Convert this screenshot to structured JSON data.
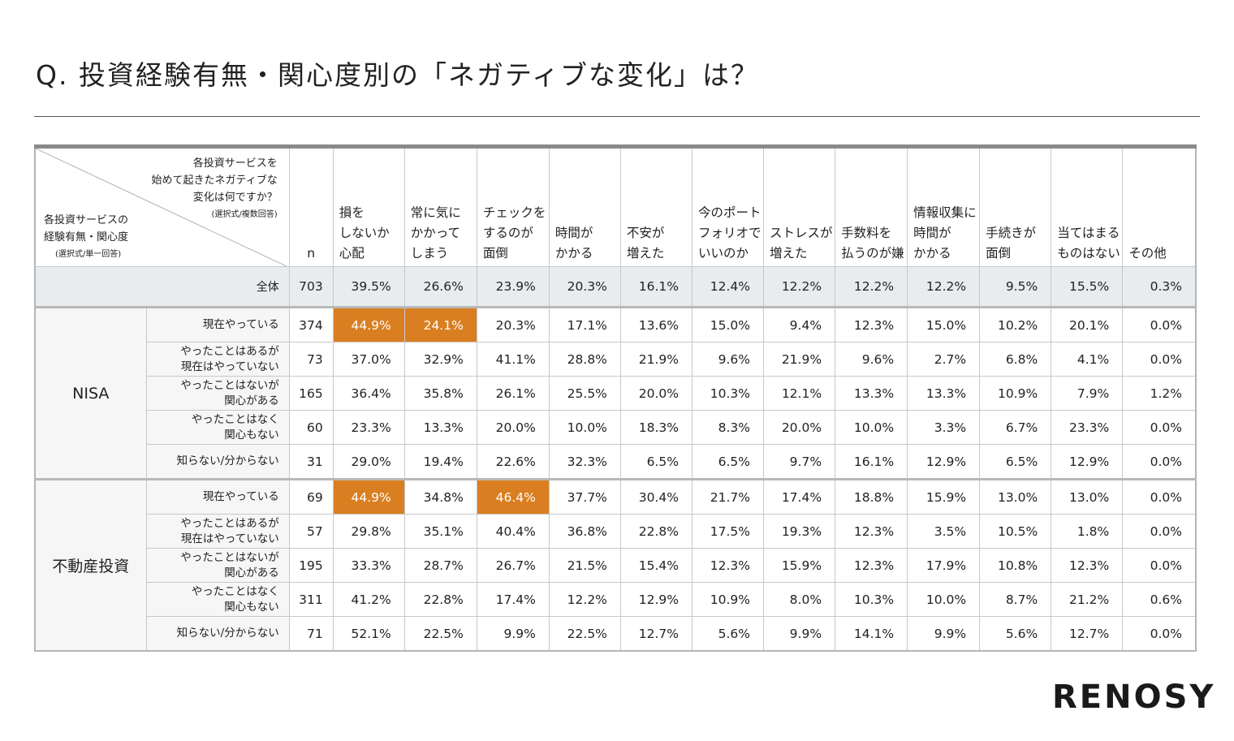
{
  "title": "Q. 投資経験有無・関心度別の「ネガティブな変化」は？",
  "corner": {
    "question_lines": [
      "各投資サービスを",
      "始めて起きたネガティブな",
      "変化は何ですか？"
    ],
    "question_note": "(選択式/複数回答)",
    "segment_lines": [
      "各投資サービスの",
      "経験有無・関心度"
    ],
    "segment_note": "(選択式/単一回答)"
  },
  "n_label": "n",
  "headers": [
    [
      "損を",
      "しないか",
      "心配"
    ],
    [
      "常に気に",
      "かかって",
      "しまう"
    ],
    [
      "チェックを",
      "するのが",
      "面倒"
    ],
    [
      "時間が",
      "かかる"
    ],
    [
      "不安が",
      "増えた"
    ],
    [
      "今のポート",
      "フォリオで",
      "いいのか"
    ],
    [
      "ストレスが",
      "増えた"
    ],
    [
      "手数料を",
      "払うのが嫌"
    ],
    [
      "情報収集に",
      "時間が",
      "かかる"
    ],
    [
      "手続きが",
      "面倒"
    ],
    [
      "当てはまる",
      "ものはない"
    ],
    [
      "その他"
    ]
  ],
  "total": {
    "label": "全体",
    "n": "703",
    "values": [
      "39.5%",
      "26.6%",
      "23.9%",
      "20.3%",
      "16.1%",
      "12.4%",
      "12.2%",
      "12.2%",
      "12.2%",
      "9.5%",
      "15.5%",
      "0.3%"
    ]
  },
  "groups": [
    {
      "name": "NISA",
      "rows": [
        {
          "label": [
            "現在やっている"
          ],
          "n": "374",
          "values": [
            "44.9%",
            "24.1%",
            "20.3%",
            "17.1%",
            "13.6%",
            "15.0%",
            "9.4%",
            "12.3%",
            "15.0%",
            "10.2%",
            "20.1%",
            "0.0%"
          ],
          "highlight": [
            0,
            1
          ]
        },
        {
          "label": [
            "やったことはあるが",
            "現在はやっていない"
          ],
          "n": "73",
          "values": [
            "37.0%",
            "32.9%",
            "41.1%",
            "28.8%",
            "21.9%",
            "9.6%",
            "21.9%",
            "9.6%",
            "2.7%",
            "6.8%",
            "4.1%",
            "0.0%"
          ],
          "highlight": []
        },
        {
          "label": [
            "やったことはないが",
            "関心がある"
          ],
          "n": "165",
          "values": [
            "36.4%",
            "35.8%",
            "26.1%",
            "25.5%",
            "20.0%",
            "10.3%",
            "12.1%",
            "13.3%",
            "13.3%",
            "10.9%",
            "7.9%",
            "1.2%"
          ],
          "highlight": []
        },
        {
          "label": [
            "やったことはなく",
            "関心もない"
          ],
          "n": "60",
          "values": [
            "23.3%",
            "13.3%",
            "20.0%",
            "10.0%",
            "18.3%",
            "8.3%",
            "20.0%",
            "10.0%",
            "3.3%",
            "6.7%",
            "23.3%",
            "0.0%"
          ],
          "highlight": []
        },
        {
          "label": [
            "知らない/分からない"
          ],
          "n": "31",
          "values": [
            "29.0%",
            "19.4%",
            "22.6%",
            "32.3%",
            "6.5%",
            "6.5%",
            "9.7%",
            "16.1%",
            "12.9%",
            "6.5%",
            "12.9%",
            "0.0%"
          ],
          "highlight": []
        }
      ]
    },
    {
      "name": "不動産投資",
      "rows": [
        {
          "label": [
            "現在やっている"
          ],
          "n": "69",
          "values": [
            "44.9%",
            "34.8%",
            "46.4%",
            "37.7%",
            "30.4%",
            "21.7%",
            "17.4%",
            "18.8%",
            "15.9%",
            "13.0%",
            "13.0%",
            "0.0%"
          ],
          "highlight": [
            0,
            2
          ]
        },
        {
          "label": [
            "やったことはあるが",
            "現在はやっていない"
          ],
          "n": "57",
          "values": [
            "29.8%",
            "35.1%",
            "40.4%",
            "36.8%",
            "22.8%",
            "17.5%",
            "19.3%",
            "12.3%",
            "3.5%",
            "10.5%",
            "1.8%",
            "0.0%"
          ],
          "highlight": []
        },
        {
          "label": [
            "やったことはないが",
            "関心がある"
          ],
          "n": "195",
          "values": [
            "33.3%",
            "28.7%",
            "26.7%",
            "21.5%",
            "15.4%",
            "12.3%",
            "15.9%",
            "12.3%",
            "17.9%",
            "10.8%",
            "12.3%",
            "0.0%"
          ],
          "highlight": []
        },
        {
          "label": [
            "やったことはなく",
            "関心もない"
          ],
          "n": "311",
          "values": [
            "41.2%",
            "22.8%",
            "17.4%",
            "12.2%",
            "12.9%",
            "10.9%",
            "8.0%",
            "10.3%",
            "10.0%",
            "8.7%",
            "21.2%",
            "0.6%"
          ],
          "highlight": []
        },
        {
          "label": [
            "知らない/分からない"
          ],
          "n": "71",
          "values": [
            "52.1%",
            "22.5%",
            "9.9%",
            "22.5%",
            "12.7%",
            "5.6%",
            "9.9%",
            "14.1%",
            "9.9%",
            "5.6%",
            "12.7%",
            "0.0%"
          ],
          "highlight": []
        }
      ]
    }
  ],
  "logo": "RENOSY",
  "colors": {
    "highlight": "#d97f21",
    "total_bg": "#e8ecef",
    "label_bg": "#f6f6f6"
  },
  "chart_data": {
    "type": "table",
    "title": "Q. 投資経験有無・関心度別の「ネガティブな変化」は？",
    "columns": [
      "損をしないか心配",
      "常に気にかかってしまう",
      "チェックをするのが面倒",
      "時間がかかる",
      "不安が増えた",
      "今のポートフォリオでいいのか",
      "ストレスが増えた",
      "手数料を払うのが嫌",
      "情報収集に時間がかかる",
      "手続きが面倒",
      "当てはまるものはない",
      "その他"
    ],
    "unit": "%"
  }
}
